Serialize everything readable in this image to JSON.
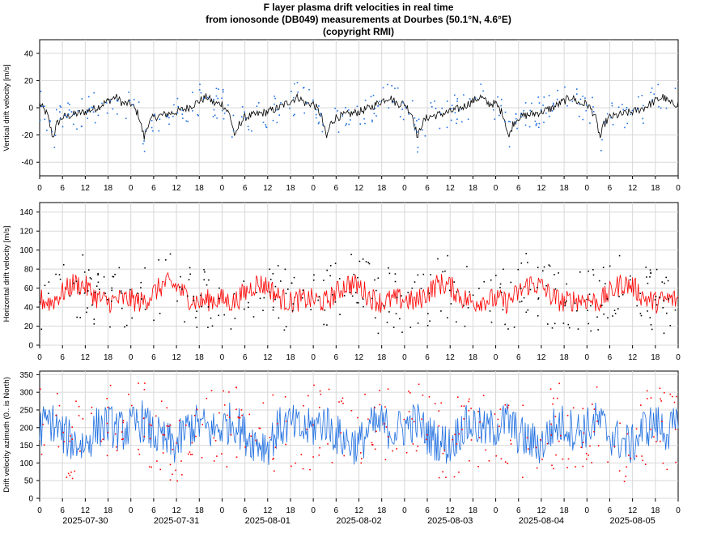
{
  "header": {
    "title_line1": "F layer plasma drift velocities in real time",
    "title_line2": "from ionosonde (DB049) measurements at Dourbes (50.1°N, 4.6°E)",
    "title_line3": "(copyright RMI)"
  },
  "chart_data": [
    {
      "type": "line",
      "ylabel": "Vertical drift velocity [m/s]",
      "ylim": [
        -50,
        50
      ],
      "yticks": [
        -40,
        -20,
        0,
        20,
        40
      ],
      "xlim_hours": [
        0,
        168
      ],
      "xtick_labels": [
        "0",
        "6",
        "12",
        "18",
        "0",
        "6",
        "12",
        "18",
        "0",
        "6",
        "12",
        "18",
        "0",
        "6",
        "12",
        "18",
        "0",
        "6",
        "12",
        "18",
        "0",
        "6",
        "12",
        "18",
        "0",
        "6",
        "12",
        "18",
        "0"
      ],
      "grid": true,
      "series": [
        {
          "role": "line",
          "color": "#000000"
        },
        {
          "role": "points",
          "color": "#1f6fe0"
        }
      ],
      "daily_profile": {
        "hours": [
          0,
          2,
          3.5,
          4.5,
          6,
          9,
          12,
          15,
          18,
          20,
          22,
          24
        ],
        "values": [
          3,
          -5,
          -22,
          -12,
          -7,
          -5,
          -3,
          0,
          5,
          8,
          3,
          3
        ]
      }
    },
    {
      "type": "line",
      "ylabel": "Horizontal drift velocity [m/s]",
      "ylim": [
        0,
        150
      ],
      "yticks": [
        0,
        20,
        40,
        60,
        80,
        100,
        120,
        140
      ],
      "xlim_hours": [
        0,
        168
      ],
      "xtick_labels": [
        "0",
        "6",
        "12",
        "18",
        "0",
        "6",
        "12",
        "18",
        "0",
        "6",
        "12",
        "18",
        "0",
        "6",
        "12",
        "18",
        "0",
        "6",
        "12",
        "18",
        "0",
        "6",
        "12",
        "18",
        "0",
        "6",
        "12",
        "18",
        "0"
      ],
      "grid": true,
      "series": [
        {
          "role": "line",
          "color": "#ff0000"
        },
        {
          "role": "points",
          "color": "#000000"
        }
      ],
      "daily_profile": {
        "hours": [
          0,
          3,
          6,
          9,
          12,
          15,
          18,
          21,
          24
        ],
        "values": [
          48,
          45,
          55,
          65,
          62,
          50,
          45,
          48,
          48
        ]
      }
    },
    {
      "type": "line",
      "ylabel": "Drift velocity azimuth (0.. is North)",
      "ylim": [
        0,
        360
      ],
      "yticks": [
        0,
        50,
        100,
        150,
        200,
        250,
        300,
        350
      ],
      "xlim_hours": [
        0,
        168
      ],
      "xtick_labels": [
        "0",
        "6",
        "12",
        "18",
        "0",
        "6",
        "12",
        "18",
        "0",
        "6",
        "12",
        "18",
        "0",
        "6",
        "12",
        "18",
        "0",
        "6",
        "12",
        "18",
        "0",
        "6",
        "12",
        "18",
        "0",
        "6",
        "12",
        "18",
        "0"
      ],
      "date_labels": [
        "2025-07-30",
        "2025-07-31",
        "2025-08-01",
        "2025-08-02",
        "2025-08-03",
        "2025-08-04",
        "2025-08-05"
      ],
      "grid": true,
      "series": [
        {
          "role": "line",
          "color": "#1f6fe0"
        },
        {
          "role": "points",
          "color": "#ff0000"
        }
      ],
      "daily_profile": {
        "hours": [
          0,
          3,
          6,
          9,
          12,
          15,
          18,
          21,
          24
        ],
        "values": [
          200,
          220,
          180,
          160,
          150,
          200,
          210,
          190,
          200
        ]
      }
    }
  ]
}
